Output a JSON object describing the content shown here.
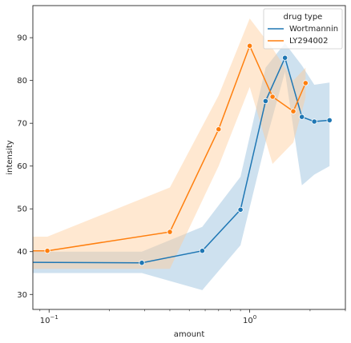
{
  "chart_data": {
    "type": "line",
    "xlabel": "amount",
    "ylabel": "intensity",
    "xscale": "log",
    "xlim": [
      0.083,
      3.0
    ],
    "ylim": [
      26.5,
      97.5
    ],
    "x_ticks": [
      {
        "value": 0.1,
        "base": "10",
        "exp": "−1"
      },
      {
        "value": 1,
        "base": "10",
        "exp": "0"
      }
    ],
    "y_ticks": [
      30,
      40,
      50,
      60,
      70,
      80,
      90
    ],
    "grid": false,
    "legend": {
      "title": "drug type",
      "placement": "top-right"
    },
    "series": [
      {
        "name": "Wortmannin",
        "color": "#1f77b4",
        "band_color": "#1f77b4",
        "x": [
          0.083,
          0.29,
          0.58,
          0.9,
          1.2,
          1.5,
          1.82,
          2.1,
          2.5
        ],
        "y": [
          37.5,
          37.4,
          40.2,
          49.8,
          75.2,
          85.3,
          71.5,
          70.4,
          70.7
        ],
        "lower": [
          35.0,
          35.0,
          31.0,
          41.5,
          65.5,
          82.0,
          55.5,
          58.0,
          60.0
        ],
        "upper": [
          40.0,
          40.0,
          45.8,
          57.5,
          83.0,
          88.7,
          83.5,
          79.0,
          79.5
        ]
      },
      {
        "name": "LY294002",
        "color": "#ff7f0e",
        "band_color": "#ffcc99",
        "x": [
          0.083,
          0.098,
          0.4,
          0.7,
          1.0,
          1.3,
          1.65,
          1.9
        ],
        "y": [
          40.2,
          40.2,
          44.6,
          68.6,
          88.1,
          76.2,
          72.8,
          79.4
        ],
        "lower": [
          36.0,
          36.0,
          36.0,
          60.0,
          78.5,
          60.5,
          65.5,
          76.0
        ],
        "upper": [
          43.5,
          43.5,
          55.0,
          76.5,
          94.5,
          87.5,
          80.0,
          83.0
        ]
      }
    ]
  }
}
